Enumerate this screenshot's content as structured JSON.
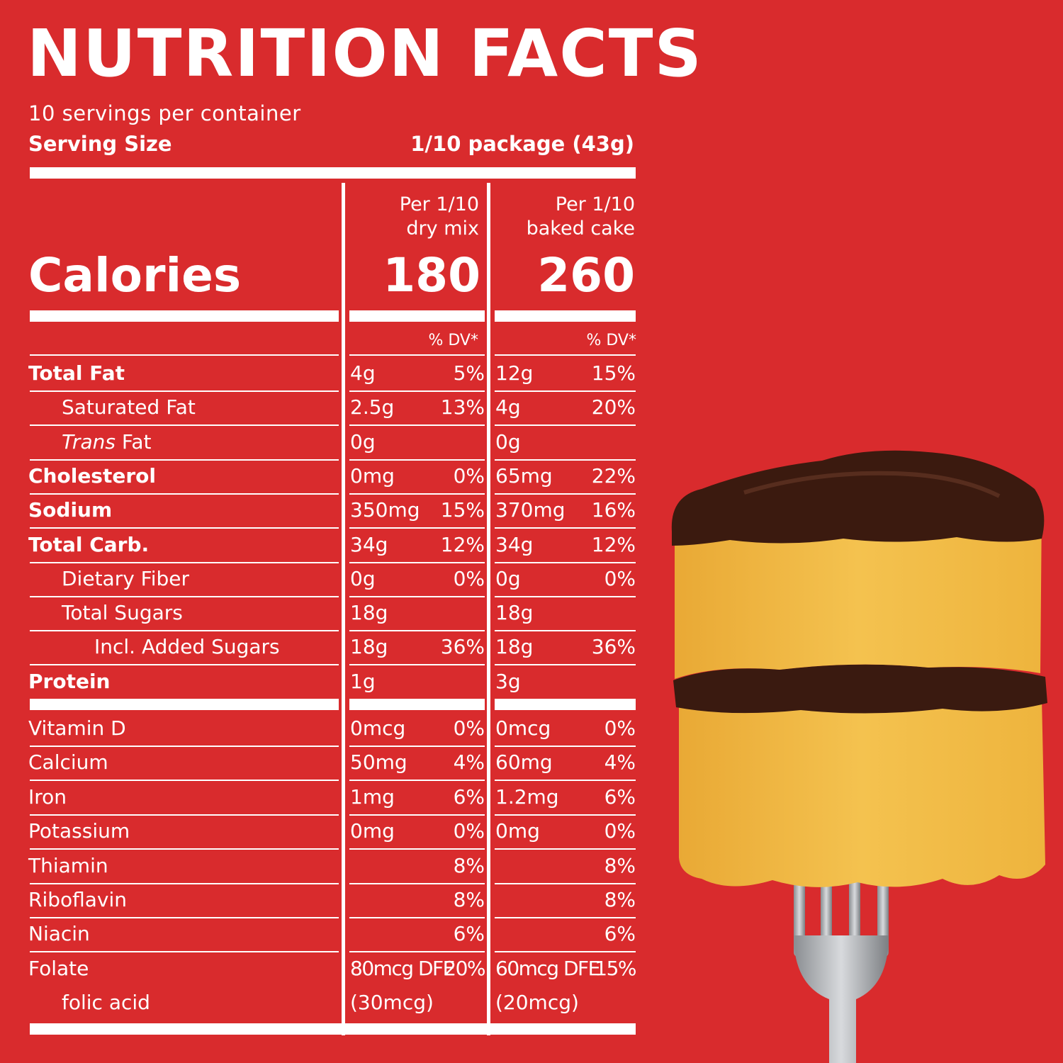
{
  "title": "NUTRITION  FACTS",
  "servings_per_container": "10 servings per container",
  "serving_size": {
    "label": "Serving Size",
    "value": "1/10 package (43g)"
  },
  "columns": [
    {
      "line1": "Per 1/10",
      "line2": "dry mix",
      "calories": "180"
    },
    {
      "line1": "Per 1/10",
      "line2": "baked cake",
      "calories": "260"
    }
  ],
  "calories_label": "Calories",
  "dv_header": "% DV*",
  "nutrients": [
    {
      "name": "Total Fat",
      "dry_amt": "4g",
      "dry_dv": "5%",
      "baked_amt": "12g",
      "baked_dv": "15%"
    },
    {
      "name": "Saturated Fat",
      "dry_amt": "2.5g",
      "dry_dv": "13%",
      "baked_amt": "4g",
      "baked_dv": "20%"
    },
    {
      "name_italic": "Trans",
      "name": " Fat",
      "dry_amt": "0g",
      "dry_dv": "",
      "baked_amt": "0g",
      "baked_dv": ""
    },
    {
      "name": "Cholesterol",
      "dry_amt": "0mg",
      "dry_dv": "0%",
      "baked_amt": "65mg",
      "baked_dv": "22%"
    },
    {
      "name": "Sodium",
      "dry_amt": "350mg",
      "dry_dv": "15%",
      "baked_amt": "370mg",
      "baked_dv": "16%"
    },
    {
      "name": "Total Carb.",
      "dry_amt": "34g",
      "dry_dv": "12%",
      "baked_amt": "34g",
      "baked_dv": "12%"
    },
    {
      "name": "Dietary Fiber",
      "dry_amt": "0g",
      "dry_dv": "0%",
      "baked_amt": "0g",
      "baked_dv": "0%"
    },
    {
      "name": "Total Sugars",
      "dry_amt": "18g",
      "dry_dv": "",
      "baked_amt": "18g",
      "baked_dv": ""
    },
    {
      "name": "Incl. Added Sugars",
      "dry_amt": "18g",
      "dry_dv": "36%",
      "baked_amt": "18g",
      "baked_dv": "36%"
    },
    {
      "name": "Protein",
      "dry_amt": "1g",
      "dry_dv": "",
      "baked_amt": "3g",
      "baked_dv": ""
    }
  ],
  "vitamins": [
    {
      "name": "Vitamin D",
      "dry_amt": "0mcg",
      "dry_dv": "0%",
      "baked_amt": "0mcg",
      "baked_dv": "0%"
    },
    {
      "name": "Calcium",
      "dry_amt": "50mg",
      "dry_dv": "4%",
      "baked_amt": "60mg",
      "baked_dv": "4%"
    },
    {
      "name": "Iron",
      "dry_amt": "1mg",
      "dry_dv": "6%",
      "baked_amt": "1.2mg",
      "baked_dv": "6%"
    },
    {
      "name": "Potassium",
      "dry_amt": "0mg",
      "dry_dv": "0%",
      "baked_amt": "0mg",
      "baked_dv": "0%"
    },
    {
      "name": "Thiamin",
      "dry_amt": "",
      "dry_dv": "8%",
      "baked_amt": "",
      "baked_dv": "8%"
    },
    {
      "name": "Riboflavin",
      "dry_amt": "",
      "dry_dv": "8%",
      "baked_amt": "",
      "baked_dv": "8%"
    },
    {
      "name": "Niacin",
      "dry_amt": "",
      "dry_dv": "6%",
      "baked_amt": "",
      "baked_dv": "6%"
    },
    {
      "name": "Folate",
      "dry_amt": "80mcg DFE",
      "dry_dv": "20%",
      "baked_amt": "60mcg DFE",
      "baked_dv": "15%"
    },
    {
      "name": "folic acid",
      "dry_amt": "(30mcg)",
      "dry_dv": "",
      "baked_amt": "(20mcg)",
      "baked_dv": ""
    }
  ],
  "colors": {
    "background": "#d92b2d",
    "text": "#ffffff"
  }
}
